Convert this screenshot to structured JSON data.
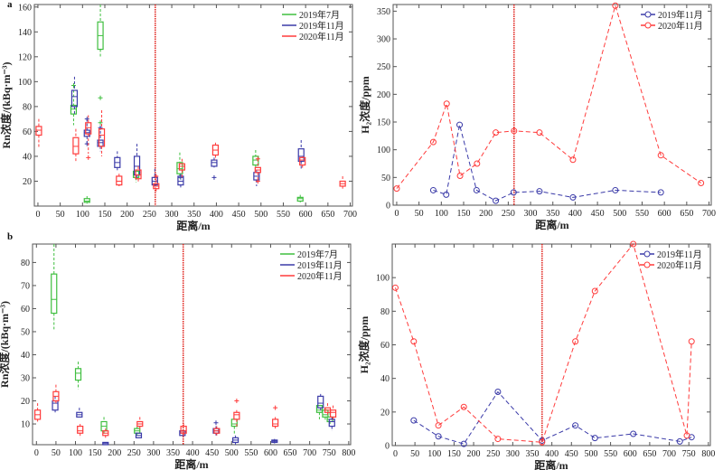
{
  "colors": {
    "jul2019": "#3fbf3f",
    "nov2019": "#3a3aa8",
    "nov2020": "#ff3b3b",
    "fault": "#e0201a"
  },
  "chart_data": [
    {
      "id": "a-rn",
      "panel_label": "a",
      "type": "box",
      "xlabel": "距离/m",
      "ylabel": "Rn浓度/(kBq·m⁻³)",
      "xlim": [
        -8,
        705
      ],
      "ylim": [
        0,
        162
      ],
      "xticks": [
        0,
        50,
        100,
        150,
        200,
        250,
        300,
        350,
        400,
        450,
        500,
        550,
        600,
        650,
        700
      ],
      "yticks": [
        20,
        40,
        60,
        80,
        100,
        120,
        140,
        160
      ],
      "fault_x": 263,
      "legend_position": "top-right",
      "series": [
        {
          "name": "2019年7月",
          "color_key": "jul2019",
          "boxes": [
            {
              "x": 80,
              "lo": 65,
              "q1": 74,
              "med": 78,
              "q3": 81,
              "hi": 97,
              "out": [
                97
              ]
            },
            {
              "x": 110,
              "lo": 2,
              "q1": 3,
              "med": 4,
              "q3": 6,
              "hi": 8,
              "out": []
            },
            {
              "x": 140,
              "lo": 120,
              "q1": 126,
              "med": 137,
              "q3": 148,
              "hi": 162,
              "out": [
                87,
                67
              ]
            },
            {
              "x": 220,
              "lo": 19,
              "q1": 23,
              "med": 25,
              "q3": 28,
              "hi": 28,
              "out": []
            },
            {
              "x": 318,
              "lo": 22,
              "q1": 26,
              "med": 30,
              "q3": 35,
              "hi": 43,
              "out": []
            },
            {
              "x": 488,
              "lo": 31,
              "q1": 33,
              "med": 37,
              "q3": 40,
              "hi": 45,
              "out": []
            },
            {
              "x": 588,
              "lo": 3,
              "q1": 4,
              "med": 6,
              "q3": 7,
              "hi": 9,
              "out": []
            }
          ]
        },
        {
          "name": "2019年11月",
          "color_key": "nov2019",
          "boxes": [
            {
              "x": 82,
              "lo": 73,
              "q1": 80,
              "med": 88,
              "q3": 93,
              "hi": 104,
              "out": []
            },
            {
              "x": 110,
              "lo": 50,
              "q1": 56,
              "med": 59,
              "q3": 61,
              "hi": 70,
              "out": [
                50,
                70
              ]
            },
            {
              "x": 140,
              "lo": 44,
              "q1": 48,
              "med": 51,
              "q3": 53,
              "hi": 64,
              "out": [
                63
              ]
            },
            {
              "x": 178,
              "lo": 28,
              "q1": 31,
              "med": 35,
              "q3": 39,
              "hi": 44,
              "out": []
            },
            {
              "x": 222,
              "lo": 22,
              "q1": 25,
              "med": 32,
              "q3": 40,
              "hi": 50,
              "out": []
            },
            {
              "x": 262,
              "lo": 16,
              "q1": 17,
              "med": 20,
              "q3": 23,
              "hi": 30,
              "out": []
            },
            {
              "x": 320,
              "lo": 15,
              "q1": 17,
              "med": 20,
              "q3": 24,
              "hi": 26,
              "out": [
                23
              ]
            },
            {
              "x": 395,
              "lo": 31,
              "q1": 32,
              "med": 35,
              "q3": 37,
              "hi": 39,
              "out": [
                23
              ]
            },
            {
              "x": 490,
              "lo": 16,
              "q1": 21,
              "med": 24,
              "q3": 27,
              "hi": 29,
              "out": []
            },
            {
              "x": 590,
              "lo": 29,
              "q1": 36,
              "med": 40,
              "q3": 46,
              "hi": 53,
              "out": []
            }
          ]
        },
        {
          "name": "2020年11月",
          "color_key": "nov2020",
          "boxes": [
            {
              "x": 2,
              "lo": 47,
              "q1": 57,
              "med": 61,
              "q3": 64,
              "hi": 70,
              "out": []
            },
            {
              "x": 85,
              "lo": 36,
              "q1": 42,
              "med": 48,
              "q3": 55,
              "hi": 62,
              "out": []
            },
            {
              "x": 113,
              "lo": 42,
              "q1": 58,
              "med": 63,
              "q3": 67,
              "hi": 73,
              "out": [
                39
              ]
            },
            {
              "x": 143,
              "lo": 40,
              "q1": 48,
              "med": 57,
              "q3": 62,
              "hi": 77,
              "out": []
            },
            {
              "x": 182,
              "lo": 16,
              "q1": 17,
              "med": 20,
              "q3": 24,
              "hi": 26,
              "out": []
            },
            {
              "x": 225,
              "lo": 19,
              "q1": 22,
              "med": 25,
              "q3": 29,
              "hi": 32,
              "out": []
            },
            {
              "x": 265,
              "lo": 11,
              "q1": 14,
              "med": 16,
              "q3": 18,
              "hi": 25,
              "out": [
                24
              ]
            },
            {
              "x": 323,
              "lo": 23,
              "q1": 29,
              "med": 32,
              "q3": 34,
              "hi": 38,
              "out": []
            },
            {
              "x": 398,
              "lo": 37,
              "q1": 41,
              "med": 45,
              "q3": 49,
              "hi": 51,
              "out": []
            },
            {
              "x": 493,
              "lo": 20,
              "q1": 27,
              "med": 29,
              "q3": 31,
              "hi": 38,
              "out": [
                38,
                20
              ]
            },
            {
              "x": 593,
              "lo": 30,
              "q1": 33,
              "med": 37,
              "q3": 39,
              "hi": 40,
              "out": []
            },
            {
              "x": 683,
              "lo": 14,
              "q1": 16,
              "med": 18,
              "q3": 20,
              "hi": 24,
              "out": []
            }
          ]
        }
      ]
    },
    {
      "id": "a-h2",
      "type": "line",
      "xlabel": "距离/m",
      "ylabel": "H₂浓度/ppm",
      "xlim": [
        -8,
        705
      ],
      "ylim": [
        0,
        362
      ],
      "xticks": [
        0,
        50,
        100,
        150,
        200,
        250,
        300,
        350,
        400,
        450,
        500,
        550,
        600,
        650,
        700
      ],
      "yticks": [
        0,
        50,
        100,
        150,
        200,
        250,
        300,
        350
      ],
      "fault_x": 263,
      "legend_position": "top-right",
      "series": [
        {
          "name": "2019年11月",
          "color_key": "nov2019",
          "points": [
            [
              82,
              27
            ],
            [
              111,
              19
            ],
            [
              141,
              145
            ],
            [
              179,
              27
            ],
            [
              222,
              8
            ],
            [
              262,
              23
            ],
            [
              320,
              25
            ],
            [
              395,
              14
            ],
            [
              490,
              27
            ],
            [
              592,
              23
            ]
          ]
        },
        {
          "name": "2020年11月",
          "color_key": "nov2020",
          "points": [
            [
              0,
              30
            ],
            [
              82,
              114
            ],
            [
              112,
              183
            ],
            [
              142,
              53
            ],
            [
              180,
              75
            ],
            [
              222,
              131
            ],
            [
              263,
              134
            ],
            [
              320,
              131
            ],
            [
              395,
              82
            ],
            [
              490,
              360
            ],
            [
              592,
              90
            ],
            [
              682,
              40
            ]
          ]
        }
      ]
    },
    {
      "id": "b-rn",
      "panel_label": "b",
      "type": "box",
      "xlabel": "距离/m",
      "ylabel": "Rn浓度/(kBq·m⁻³)",
      "xlim": [
        -10,
        805
      ],
      "ylim": [
        1,
        88
      ],
      "xticks": [
        0,
        50,
        100,
        150,
        200,
        250,
        300,
        350,
        400,
        450,
        500,
        550,
        600,
        650,
        700,
        750,
        800
      ],
      "yticks": [
        10,
        20,
        30,
        40,
        50,
        60,
        70,
        80
      ],
      "fault_x": 376,
      "legend_position": "top-right",
      "series": [
        {
          "name": "2019年7月",
          "color_key": "jul2019",
          "boxes": [
            {
              "x": 45,
              "lo": 51,
              "q1": 58,
              "med": 64,
              "q3": 75,
              "hi": 88,
              "out": []
            },
            {
              "x": 107,
              "lo": 25,
              "q1": 29,
              "med": 32,
              "q3": 34,
              "hi": 37,
              "out": []
            },
            {
              "x": 173,
              "lo": 5,
              "q1": 7,
              "med": 9,
              "q3": 11,
              "hi": 13,
              "out": []
            },
            {
              "x": 258,
              "lo": 5,
              "q1": 6,
              "med": 7,
              "q3": 8,
              "hi": 9,
              "out": []
            },
            {
              "x": 507,
              "lo": 5,
              "q1": 9,
              "med": 10,
              "q3": 12,
              "hi": 12,
              "out": []
            },
            {
              "x": 725,
              "lo": 12,
              "q1": 15,
              "med": 16,
              "q3": 18,
              "hi": 18,
              "out": []
            },
            {
              "x": 740,
              "lo": 11,
              "q1": 13,
              "med": 14,
              "q3": 16,
              "hi": 17,
              "out": []
            },
            {
              "x": 752,
              "lo": 10,
              "q1": 11,
              "med": 12,
              "q3": 13,
              "hi": 15,
              "out": []
            }
          ]
        },
        {
          "name": "2019年11月",
          "color_key": "nov2019",
          "boxes": [
            {
              "x": 48,
              "lo": 15,
              "q1": 16,
              "med": 19,
              "q3": 20,
              "hi": 22,
              "out": []
            },
            {
              "x": 110,
              "lo": 13,
              "q1": 13,
              "med": 14,
              "q3": 15,
              "hi": 17,
              "out": []
            },
            {
              "x": 177,
              "lo": 1,
              "q1": 1,
              "med": 1.5,
              "q3": 2,
              "hi": 2,
              "out": []
            },
            {
              "x": 262,
              "lo": 4,
              "q1": 4,
              "med": 5,
              "q3": 6,
              "hi": 6,
              "out": []
            },
            {
              "x": 374,
              "lo": 5,
              "q1": 5,
              "med": 6,
              "q3": 7,
              "hi": 7,
              "out": []
            },
            {
              "x": 460,
              "lo": 5,
              "q1": 6,
              "med": 7,
              "q3": 8,
              "hi": 11,
              "out": [
                10.5
              ]
            },
            {
              "x": 510,
              "lo": 1,
              "q1": 2,
              "med": 3,
              "q3": 4,
              "hi": 5,
              "out": []
            },
            {
              "x": 610,
              "lo": 2,
              "q1": 2,
              "med": 2.5,
              "q3": 3,
              "hi": 3,
              "out": [
                2.5
              ]
            },
            {
              "x": 728,
              "lo": 15,
              "q1": 17,
              "med": 19,
              "q3": 22,
              "hi": 23,
              "out": []
            },
            {
              "x": 757,
              "lo": 7,
              "q1": 9,
              "med": 11,
              "q3": 12,
              "hi": 13,
              "out": []
            }
          ]
        },
        {
          "name": "2020年11月",
          "color_key": "nov2020",
          "boxes": [
            {
              "x": 3,
              "lo": 11,
              "q1": 12,
              "med": 14,
              "q3": 16,
              "hi": 19,
              "out": []
            },
            {
              "x": 50,
              "lo": 19,
              "q1": 20,
              "med": 22,
              "q3": 24,
              "hi": 27,
              "out": []
            },
            {
              "x": 112,
              "lo": 4,
              "q1": 6,
              "med": 7,
              "q3": 9,
              "hi": 10,
              "out": []
            },
            {
              "x": 177,
              "lo": 4,
              "q1": 5,
              "med": 6,
              "q3": 7,
              "hi": 8,
              "out": []
            },
            {
              "x": 265,
              "lo": 7,
              "q1": 9,
              "med": 10,
              "q3": 11,
              "hi": 13,
              "out": []
            },
            {
              "x": 377,
              "lo": 5,
              "q1": 6,
              "med": 7,
              "q3": 9,
              "hi": 10,
              "out": []
            },
            {
              "x": 462,
              "lo": 5,
              "q1": 6,
              "med": 7,
              "q3": 8,
              "hi": 9,
              "out": []
            },
            {
              "x": 513,
              "lo": 8,
              "q1": 12,
              "med": 14,
              "q3": 15,
              "hi": 16,
              "out": [
                20
              ]
            },
            {
              "x": 612,
              "lo": 8,
              "q1": 9,
              "med": 10,
              "q3": 12,
              "hi": 13,
              "out": [
                17
              ]
            },
            {
              "x": 746,
              "lo": 14,
              "q1": 15,
              "med": 16,
              "q3": 17,
              "hi": 19,
              "out": []
            },
            {
              "x": 760,
              "lo": 12,
              "q1": 13,
              "med": 15,
              "q3": 16,
              "hi": 18,
              "out": []
            }
          ]
        }
      ]
    },
    {
      "id": "b-h2",
      "type": "line",
      "xlabel": "距离/m",
      "ylabel": "H₂浓度/ppm",
      "xlim": [
        -8,
        805
      ],
      "ylim": [
        0,
        120
      ],
      "xticks": [
        0,
        50,
        100,
        150,
        200,
        250,
        300,
        350,
        400,
        450,
        500,
        550,
        600,
        650,
        700,
        750,
        800
      ],
      "yticks": [
        0,
        20,
        40,
        60,
        80,
        100
      ],
      "fault_x": 375,
      "legend_position": "top-right",
      "series": [
        {
          "name": "2019年11月",
          "color_key": "nov2019",
          "points": [
            [
              47,
              15
            ],
            [
              110,
              5.5
            ],
            [
              175,
              1
            ],
            [
              262,
              32
            ],
            [
              375,
              3
            ],
            [
              460,
              12
            ],
            [
              510,
              4.5
            ],
            [
              608,
              7
            ],
            [
              727,
              2.5
            ],
            [
              757,
              5
            ]
          ]
        },
        {
          "name": "2020年11月",
          "color_key": "nov2020",
          "points": [
            [
              0,
              94
            ],
            [
              47,
              62
            ],
            [
              110,
              12
            ],
            [
              175,
              23
            ],
            [
              262,
              4
            ],
            [
              375,
              2
            ],
            [
              460,
              62
            ],
            [
              510,
              92
            ],
            [
              608,
              120
            ],
            [
              745,
              6
            ],
            [
              757,
              62
            ]
          ]
        }
      ]
    }
  ]
}
